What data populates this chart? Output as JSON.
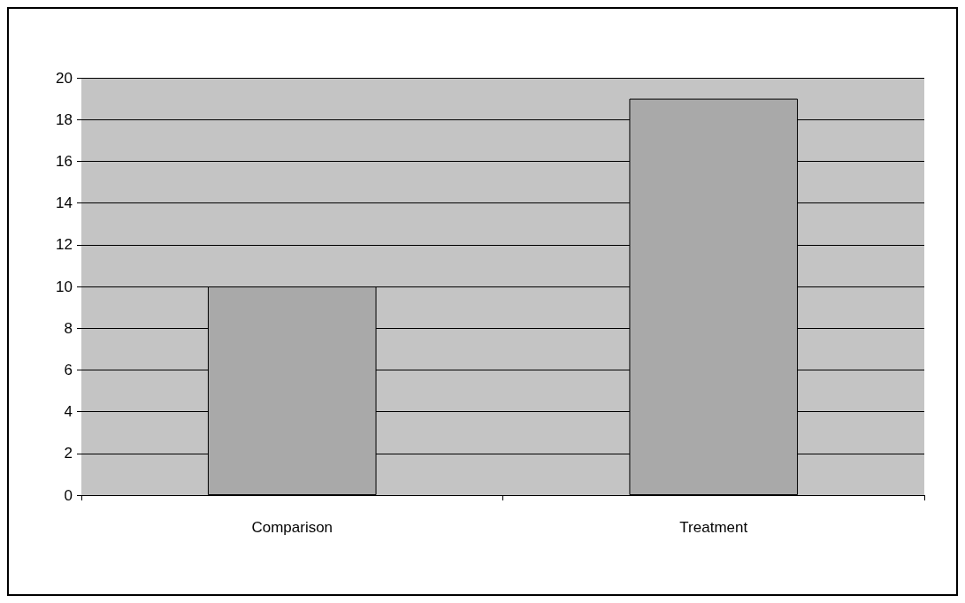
{
  "chart_data": {
    "type": "bar",
    "categories": [
      "Comparison",
      "Treatment"
    ],
    "values": [
      10,
      19
    ],
    "color": "#a9a9a9",
    "ylim": [
      0,
      20
    ],
    "yticks": [
      0,
      2,
      4,
      6,
      8,
      10,
      12,
      14,
      16,
      18,
      20
    ],
    "grid": "y"
  }
}
